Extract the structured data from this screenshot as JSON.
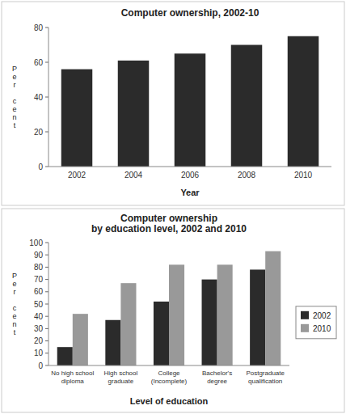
{
  "chart_data": [
    {
      "type": "bar",
      "title": "Computer ownership, 2002-10",
      "categories": [
        "2002",
        "2004",
        "2006",
        "2008",
        "2010"
      ],
      "values": [
        56,
        61,
        65,
        70,
        75
      ],
      "color": "#2b2b2b",
      "xlabel": "Year",
      "ylabel": "Per cent",
      "ylim": [
        0,
        80
      ],
      "yticks": [
        0,
        20,
        40,
        60,
        80
      ],
      "grid": false
    },
    {
      "type": "bar",
      "title": "Computer ownership\nby education level, 2002 and 2010",
      "categories": [
        "No high school\ndiploma",
        "High school\ngraduate",
        "College\n(Incomplete)",
        "Bachelor's\ndegree",
        "Postgraduate\nqualification"
      ],
      "series": [
        {
          "name": "2002",
          "color": "#2b2b2b",
          "values": [
            15,
            37,
            52,
            70,
            78
          ]
        },
        {
          "name": "2010",
          "color": "#999999",
          "values": [
            42,
            67,
            82,
            82,
            93
          ]
        }
      ],
      "xlabel": "Level of education",
      "ylabel": "Per cent",
      "ylim": [
        0,
        100
      ],
      "yticks": [
        0,
        10,
        20,
        30,
        40,
        50,
        60,
        70,
        80,
        90,
        100
      ],
      "grid": false,
      "legend": "right"
    }
  ]
}
